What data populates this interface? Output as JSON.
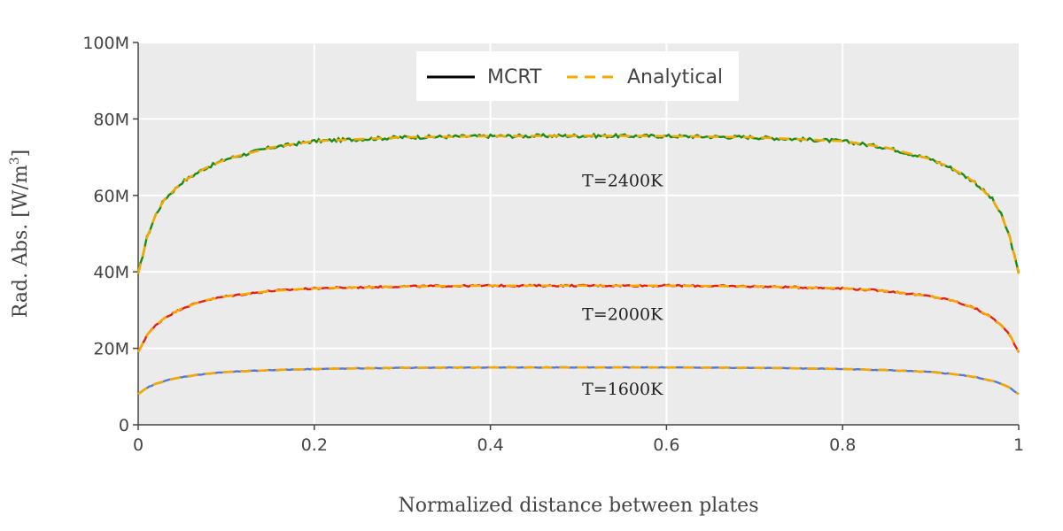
{
  "chart_data": {
    "type": "line",
    "xlabel": "Normalized distance between plates",
    "ylabel_parts": {
      "main": "Rad. Abs. [W/m",
      "exp": "3",
      "end": "]"
    },
    "xlim": [
      0,
      1
    ],
    "ylim": [
      0,
      100000000
    ],
    "x_ticks": [
      {
        "value": 0,
        "label": "0"
      },
      {
        "value": 0.2,
        "label": "0.2"
      },
      {
        "value": 0.4,
        "label": "0.4"
      },
      {
        "value": 0.6,
        "label": "0.6"
      },
      {
        "value": 0.8,
        "label": "0.8"
      },
      {
        "value": 1,
        "label": "1"
      }
    ],
    "y_ticks": [
      {
        "value": 0,
        "label": "0"
      },
      {
        "value": 20000000,
        "label": "20M"
      },
      {
        "value": 40000000,
        "label": "40M"
      },
      {
        "value": 60000000,
        "label": "60M"
      },
      {
        "value": 80000000,
        "label": "80M"
      },
      {
        "value": 100000000,
        "label": "100M"
      }
    ],
    "grid": true,
    "legend": {
      "placement": "top-center",
      "entries": [
        {
          "name": "MCRT",
          "color": "#000000",
          "dash": "solid"
        },
        {
          "name": "Analytical",
          "color": "#f5a800",
          "dash": "dashed"
        }
      ]
    },
    "curves": [
      {
        "label": "T=2400K",
        "mcrt_color": "#1a8a1a",
        "analytical_color": "#f5a800",
        "label_at": [
          0.55,
          64000000
        ],
        "x": [
          0,
          0.01,
          0.02,
          0.03,
          0.05,
          0.075,
          0.1,
          0.15,
          0.2,
          0.3,
          0.4,
          0.5,
          0.6,
          0.7,
          0.8,
          0.85,
          0.9,
          0.925,
          0.95,
          0.97,
          0.98,
          0.99,
          1
        ],
        "y": [
          39500000,
          49000000,
          55000000,
          59000000,
          63500000,
          67000000,
          69500000,
          72500000,
          74200000,
          75200000,
          75500000,
          75600000,
          75500000,
          75200000,
          74200000,
          72500000,
          69500000,
          67000000,
          63500000,
          59000000,
          55000000,
          49000000,
          39500000
        ]
      },
      {
        "label": "T=2000K",
        "mcrt_color": "#e81c1c",
        "analytical_color": "#f5a800",
        "label_at": [
          0.55,
          29000000
        ],
        "x": [
          0,
          0.01,
          0.02,
          0.03,
          0.05,
          0.075,
          0.1,
          0.15,
          0.2,
          0.3,
          0.4,
          0.5,
          0.6,
          0.7,
          0.8,
          0.85,
          0.9,
          0.925,
          0.95,
          0.97,
          0.98,
          0.99,
          1
        ],
        "y": [
          19000000,
          23500000,
          26000000,
          28000000,
          30500000,
          32500000,
          33600000,
          35000000,
          35700000,
          36200000,
          36400000,
          36400000,
          36400000,
          36200000,
          35700000,
          35000000,
          33600000,
          32500000,
          30500000,
          28000000,
          26000000,
          23500000,
          19000000
        ]
      },
      {
        "label": "T=1600K",
        "mcrt_color": "#4f78e0",
        "analytical_color": "#f5a800",
        "label_at": [
          0.55,
          9500000
        ],
        "x": [
          0,
          0.01,
          0.02,
          0.03,
          0.05,
          0.075,
          0.1,
          0.15,
          0.2,
          0.3,
          0.4,
          0.5,
          0.6,
          0.7,
          0.8,
          0.85,
          0.9,
          0.925,
          0.95,
          0.97,
          0.98,
          0.99,
          1
        ],
        "y": [
          8000000,
          9700000,
          10700000,
          11500000,
          12500000,
          13300000,
          13800000,
          14300000,
          14600000,
          14900000,
          15000000,
          15000000,
          15000000,
          14900000,
          14600000,
          14300000,
          13800000,
          13300000,
          12500000,
          11500000,
          10700000,
          9700000,
          8000000
        ]
      }
    ]
  }
}
